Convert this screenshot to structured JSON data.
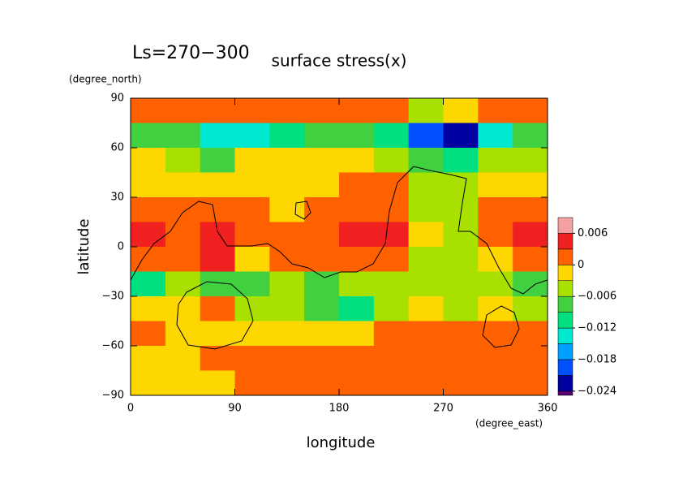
{
  "chart_data": {
    "type": "contour",
    "title": "surface stress(x)",
    "subtitle": "Ls=270−300",
    "x_label": "longitude",
    "x_unit": "(degree_east)",
    "y_label": "latitude",
    "y_unit": "(degree_north)",
    "xlim": [
      0,
      360
    ],
    "ylim": [
      -90,
      90
    ],
    "xticks": [
      0,
      90,
      180,
      270,
      360
    ],
    "yticks": [
      90,
      60,
      30,
      0,
      {
        "value": -30,
        "label": "−30"
      },
      {
        "value": -60,
        "label": "−60"
      },
      {
        "value": -90,
        "label": "−90"
      }
    ],
    "x": [
      15,
      45,
      75,
      105,
      135,
      165,
      195,
      225,
      255,
      285,
      315,
      345
    ],
    "y": [
      82.5,
      67.5,
      52.5,
      37.5,
      22.5,
      7.5,
      -7.5,
      -22.5,
      -37.5,
      -52.5,
      -67.5,
      -82.5
    ],
    "z": [
      [
        0.001,
        0.002,
        0.001,
        0.001,
        0.001,
        0.002,
        0.001,
        0.001,
        -0.004,
        -0.002,
        0.001,
        0.002
      ],
      [
        -0.007,
        -0.009,
        -0.013,
        -0.014,
        -0.012,
        -0.009,
        -0.008,
        -0.012,
        -0.02,
        -0.024,
        -0.015,
        -0.008
      ],
      [
        -0.002,
        -0.004,
        -0.007,
        -0.002,
        -0.002,
        -0.001,
        -0.001,
        -0.004,
        -0.009,
        -0.012,
        -0.006,
        -0.004
      ],
      [
        -0.001,
        -0.002,
        -0.001,
        -0.002,
        -0.001,
        -0.002,
        0.001,
        0.002,
        -0.005,
        -0.006,
        -0.003,
        -0.001
      ],
      [
        0.002,
        0.001,
        0.002,
        0.002,
        -0.001,
        0.002,
        0.002,
        0.002,
        -0.004,
        -0.005,
        0.002,
        0.002
      ],
      [
        0.004,
        0.002,
        0.004,
        0.002,
        0.002,
        0.002,
        0.004,
        0.005,
        -0.003,
        -0.005,
        0.002,
        0.004
      ],
      [
        0.001,
        0.002,
        0.004,
        -0.001,
        0.001,
        0.002,
        0.002,
        0.002,
        -0.004,
        -0.004,
        -0.002,
        0.002
      ],
      [
        -0.012,
        -0.006,
        -0.007,
        -0.008,
        -0.006,
        -0.007,
        -0.006,
        -0.006,
        -0.006,
        -0.004,
        -0.004,
        -0.007
      ],
      [
        -0.002,
        -0.001,
        0.001,
        -0.004,
        -0.005,
        -0.009,
        -0.01,
        -0.006,
        -0.003,
        -0.004,
        -0.002,
        -0.004
      ],
      [
        0.002,
        -0.001,
        -0.001,
        -0.002,
        -0.001,
        -0.002,
        -0.001,
        0.001,
        0.001,
        0.002,
        0.001,
        0.002
      ],
      [
        -0.001,
        -0.001,
        0.001,
        0.002,
        0.002,
        0.002,
        0.002,
        0.002,
        0.002,
        0.002,
        0.002,
        0.001
      ],
      [
        -0.002,
        -0.002,
        -0.002,
        0.001,
        0.001,
        0.001,
        0.001,
        0.001,
        0.001,
        0.001,
        0.001,
        0.001
      ]
    ],
    "levels": [
      -0.024,
      -0.021,
      -0.018,
      -0.015,
      -0.012,
      -0.009,
      -0.006,
      -0.003,
      0,
      0.003,
      0.006
    ],
    "colors": [
      "#5a006e",
      "#0000a0",
      "#0050ff",
      "#00a0ff",
      "#00e8d0",
      "#00e080",
      "#40d040",
      "#a8e000",
      "#ffd700",
      "#ff6000",
      "#f02020",
      "#f4a0a0"
    ],
    "colorbar_lim": [
      -0.0248,
      0.009
    ],
    "colorbar_ticks": [
      {
        "value": -0.024,
        "label": "−0.024"
      },
      {
        "value": -0.018,
        "label": "−0.018"
      },
      {
        "value": -0.012,
        "label": "−0.012"
      },
      {
        "value": -0.006,
        "label": "−0.006"
      },
      0,
      0.006
    ]
  }
}
